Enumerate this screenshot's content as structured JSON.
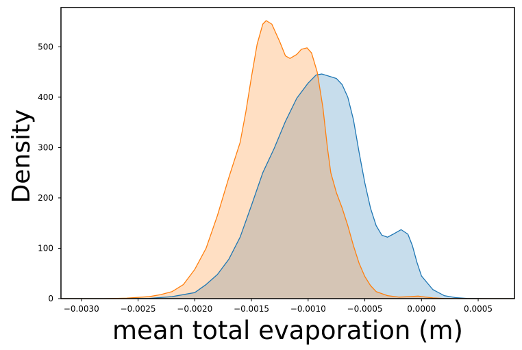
{
  "chart_data": {
    "type": "area",
    "title": "",
    "xlabel": "mean total evaporation (m)",
    "ylabel": "Density",
    "xlim": [
      -0.00318,
      0.00082
    ],
    "ylim": [
      0,
      578
    ],
    "grid": false,
    "legend": "none",
    "x_ticks": [
      {
        "value": -0.003,
        "label": "−0.0030"
      },
      {
        "value": -0.0025,
        "label": "−0.0025"
      },
      {
        "value": -0.002,
        "label": "−0.0020"
      },
      {
        "value": -0.0015,
        "label": "−0.0015"
      },
      {
        "value": -0.001,
        "label": "−0.0010"
      },
      {
        "value": -0.0005,
        "label": "−0.0005"
      },
      {
        "value": 0.0,
        "label": "0.0000"
      },
      {
        "value": 0.0005,
        "label": "0.0005"
      }
    ],
    "y_ticks": [
      {
        "value": 0,
        "label": "0"
      },
      {
        "value": 100,
        "label": "100"
      },
      {
        "value": 200,
        "label": "200"
      },
      {
        "value": 300,
        "label": "300"
      },
      {
        "value": 400,
        "label": "400"
      },
      {
        "value": 500,
        "label": "500"
      }
    ],
    "series": [
      {
        "color": "#1f77b4",
        "fill": "#1f77b4",
        "fill_opacity": 0.25,
        "points": [
          [
            -0.00318,
            0
          ],
          [
            -0.0028,
            0
          ],
          [
            -0.0024,
            0.5
          ],
          [
            -0.0022,
            4
          ],
          [
            -0.002,
            12
          ],
          [
            -0.0019,
            28
          ],
          [
            -0.0018,
            48
          ],
          [
            -0.0017,
            78
          ],
          [
            -0.0016,
            122
          ],
          [
            -0.0015,
            185
          ],
          [
            -0.0014,
            250
          ],
          [
            -0.0013,
            298
          ],
          [
            -0.0012,
            352
          ],
          [
            -0.0011,
            398
          ],
          [
            -0.001,
            428
          ],
          [
            -0.00093,
            444
          ],
          [
            -0.00088,
            446
          ],
          [
            -0.00082,
            442
          ],
          [
            -0.00075,
            437
          ],
          [
            -0.0007,
            425
          ],
          [
            -0.00065,
            400
          ],
          [
            -0.0006,
            355
          ],
          [
            -0.00055,
            290
          ],
          [
            -0.0005,
            230
          ],
          [
            -0.00045,
            180
          ],
          [
            -0.0004,
            145
          ],
          [
            -0.00035,
            126
          ],
          [
            -0.0003,
            122
          ],
          [
            -0.00025,
            128
          ],
          [
            -0.00018,
            137
          ],
          [
            -0.00012,
            128
          ],
          [
            -8e-05,
            105
          ],
          [
            -4e-05,
            72
          ],
          [
            0.0,
            45
          ],
          [
            0.0001,
            18
          ],
          [
            0.0002,
            6
          ],
          [
            0.0003,
            2
          ],
          [
            0.0004,
            0.5
          ],
          [
            0.0006,
            0
          ],
          [
            0.00082,
            0
          ]
        ]
      },
      {
        "color": "#ff7f0e",
        "fill": "#ff7f0e",
        "fill_opacity": 0.25,
        "points": [
          [
            -0.00318,
            0
          ],
          [
            -0.0028,
            0
          ],
          [
            -0.0026,
            1
          ],
          [
            -0.0024,
            4
          ],
          [
            -0.0023,
            8
          ],
          [
            -0.0022,
            14
          ],
          [
            -0.0021,
            28
          ],
          [
            -0.002,
            58
          ],
          [
            -0.0019,
            100
          ],
          [
            -0.0018,
            165
          ],
          [
            -0.0017,
            240
          ],
          [
            -0.0016,
            310
          ],
          [
            -0.00155,
            370
          ],
          [
            -0.0015,
            440
          ],
          [
            -0.00145,
            505
          ],
          [
            -0.0014,
            545
          ],
          [
            -0.00137,
            552
          ],
          [
            -0.00132,
            545
          ],
          [
            -0.00125,
            510
          ],
          [
            -0.0012,
            482
          ],
          [
            -0.00116,
            477
          ],
          [
            -0.0011,
            485
          ],
          [
            -0.00106,
            495
          ],
          [
            -0.00101,
            498
          ],
          [
            -0.00097,
            488
          ],
          [
            -0.00092,
            450
          ],
          [
            -0.00087,
            380
          ],
          [
            -0.00083,
            300
          ],
          [
            -0.0008,
            250
          ],
          [
            -0.00075,
            210
          ],
          [
            -0.0007,
            180
          ],
          [
            -0.00065,
            145
          ],
          [
            -0.0006,
            105
          ],
          [
            -0.00055,
            70
          ],
          [
            -0.0005,
            44
          ],
          [
            -0.00045,
            26
          ],
          [
            -0.0004,
            14
          ],
          [
            -0.0003,
            6
          ],
          [
            -0.0002,
            3
          ],
          [
            -0.0001,
            4
          ],
          [
            -3e-05,
            5
          ],
          [
            0.0,
            4
          ],
          [
            0.0001,
            1.5
          ],
          [
            0.0002,
            0.3
          ],
          [
            0.0004,
            0
          ],
          [
            0.00082,
            0
          ]
        ]
      }
    ]
  }
}
